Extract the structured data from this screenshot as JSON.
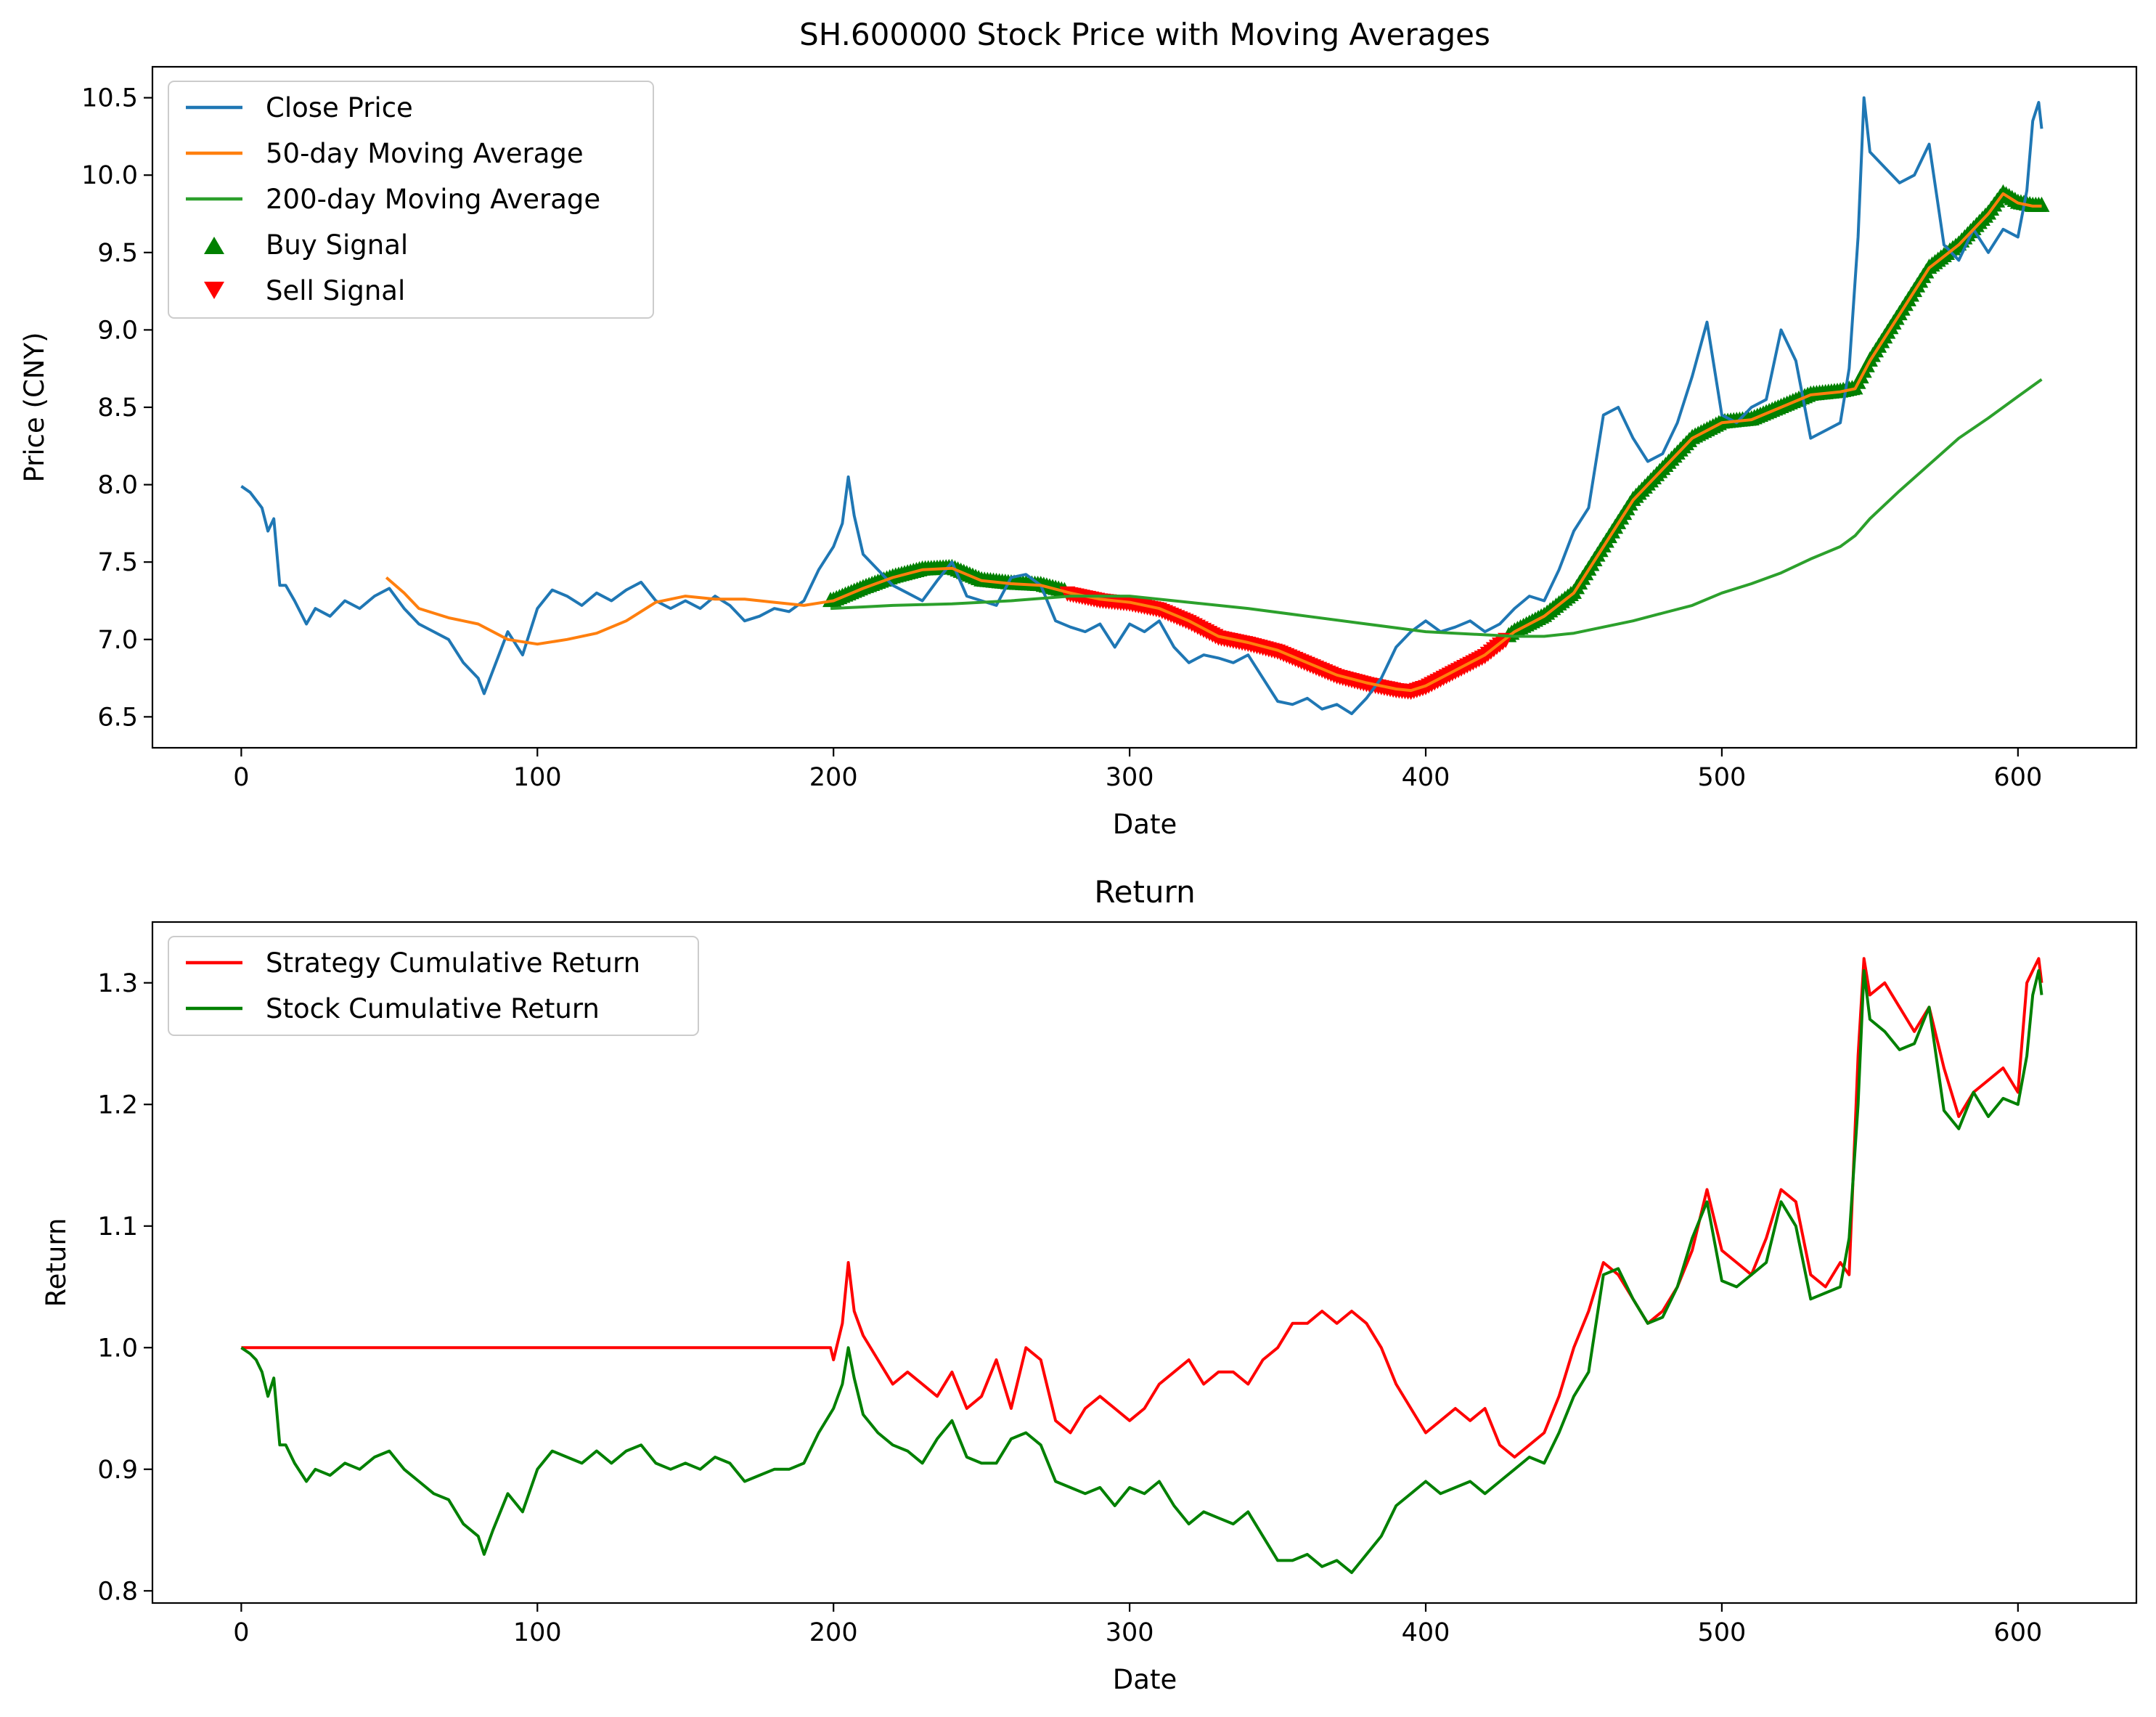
{
  "chart_data": [
    {
      "type": "line",
      "title": "SH.600000 Stock Price with Moving Averages",
      "xlabel": "Date",
      "ylabel": "Price (CNY)",
      "xlim": [
        -30,
        640
      ],
      "ylim": [
        6.3,
        10.7
      ],
      "xticks": [
        0,
        100,
        200,
        300,
        400,
        500,
        600
      ],
      "yticks": [
        6.5,
        7.0,
        7.5,
        8.0,
        8.5,
        9.0,
        9.5,
        10.0,
        10.5
      ],
      "ytick_labels": [
        "6.5",
        "7.0",
        "7.5",
        "8.0",
        "8.5",
        "9.0",
        "9.5",
        "10.0",
        "10.5"
      ],
      "grid": false,
      "legend_position": "top-left",
      "series": [
        {
          "name": "Close Price",
          "color": "#1f77b4",
          "x": [
            0,
            3,
            5,
            7,
            9,
            11,
            13,
            15,
            18,
            22,
            25,
            30,
            35,
            40,
            45,
            50,
            55,
            60,
            65,
            70,
            75,
            80,
            82,
            85,
            90,
            95,
            100,
            105,
            110,
            115,
            120,
            125,
            130,
            135,
            140,
            145,
            150,
            155,
            160,
            165,
            170,
            175,
            180,
            185,
            190,
            195,
            200,
            203,
            205,
            207,
            210,
            215,
            220,
            225,
            230,
            235,
            240,
            245,
            250,
            255,
            260,
            265,
            270,
            275,
            280,
            285,
            290,
            295,
            300,
            305,
            310,
            315,
            320,
            325,
            330,
            335,
            340,
            345,
            350,
            355,
            360,
            365,
            370,
            375,
            380,
            385,
            390,
            395,
            400,
            405,
            410,
            415,
            420,
            425,
            430,
            435,
            440,
            445,
            450,
            455,
            460,
            465,
            470,
            475,
            480,
            485,
            490,
            495,
            500,
            505,
            510,
            515,
            520,
            525,
            530,
            535,
            540,
            543,
            546,
            548,
            550,
            555,
            560,
            565,
            570,
            575,
            580,
            585,
            590,
            595,
            600,
            603,
            605,
            607,
            608
          ],
          "values": [
            7.99,
            7.95,
            7.9,
            7.85,
            7.7,
            7.78,
            7.35,
            7.35,
            7.25,
            7.1,
            7.2,
            7.15,
            7.25,
            7.2,
            7.28,
            7.33,
            7.2,
            7.1,
            7.05,
            7.0,
            6.85,
            6.75,
            6.65,
            6.8,
            7.05,
            6.9,
            7.2,
            7.32,
            7.28,
            7.22,
            7.3,
            7.25,
            7.32,
            7.37,
            7.25,
            7.2,
            7.25,
            7.2,
            7.28,
            7.22,
            7.12,
            7.15,
            7.2,
            7.18,
            7.25,
            7.45,
            7.6,
            7.75,
            8.05,
            7.8,
            7.55,
            7.45,
            7.35,
            7.3,
            7.25,
            7.38,
            7.5,
            7.28,
            7.25,
            7.22,
            7.4,
            7.42,
            7.35,
            7.12,
            7.08,
            7.05,
            7.1,
            6.95,
            7.1,
            7.05,
            7.12,
            6.95,
            6.85,
            6.9,
            6.88,
            6.85,
            6.9,
            6.75,
            6.6,
            6.58,
            6.62,
            6.55,
            6.58,
            6.52,
            6.62,
            6.75,
            6.95,
            7.05,
            7.12,
            7.05,
            7.08,
            7.12,
            7.05,
            7.1,
            7.2,
            7.28,
            7.25,
            7.45,
            7.7,
            7.85,
            8.45,
            8.5,
            8.3,
            8.15,
            8.2,
            8.4,
            8.7,
            9.05,
            8.45,
            8.4,
            8.5,
            8.55,
            9.0,
            8.8,
            8.3,
            8.35,
            8.4,
            8.75,
            9.6,
            10.5,
            10.15,
            10.05,
            9.95,
            10.0,
            10.2,
            9.55,
            9.45,
            9.65,
            9.5,
            9.65,
            9.6,
            9.9,
            10.35,
            10.47,
            10.3
          ]
        },
        {
          "name": "50-day Moving Average",
          "color": "#ff7f0e",
          "x": [
            49,
            55,
            60,
            70,
            80,
            90,
            100,
            110,
            120,
            130,
            140,
            150,
            160,
            170,
            180,
            190,
            200,
            210,
            220,
            230,
            240,
            250,
            260,
            270,
            280,
            290,
            300,
            310,
            320,
            330,
            340,
            350,
            360,
            370,
            380,
            390,
            395,
            400,
            410,
            420,
            430,
            440,
            450,
            460,
            470,
            480,
            490,
            500,
            510,
            520,
            530,
            540,
            545,
            550,
            560,
            570,
            580,
            590,
            595,
            600,
            605,
            608
          ],
          "values": [
            7.4,
            7.3,
            7.2,
            7.14,
            7.1,
            7.0,
            6.97,
            7.0,
            7.04,
            7.12,
            7.24,
            7.28,
            7.26,
            7.26,
            7.24,
            7.22,
            7.25,
            7.33,
            7.4,
            7.45,
            7.46,
            7.38,
            7.36,
            7.35,
            7.3,
            7.26,
            7.24,
            7.2,
            7.12,
            7.02,
            6.98,
            6.93,
            6.85,
            6.77,
            6.72,
            6.68,
            6.67,
            6.7,
            6.8,
            6.9,
            7.05,
            7.15,
            7.3,
            7.6,
            7.9,
            8.1,
            8.3,
            8.4,
            8.42,
            8.5,
            8.58,
            8.6,
            8.62,
            8.8,
            9.1,
            9.4,
            9.55,
            9.75,
            9.88,
            9.82,
            9.8,
            9.8
          ]
        },
        {
          "name": "200-day Moving Average",
          "color": "#2ca02c",
          "x": [
            199,
            210,
            220,
            240,
            260,
            280,
            300,
            320,
            340,
            360,
            380,
            400,
            420,
            430,
            440,
            450,
            460,
            470,
            480,
            490,
            500,
            510,
            520,
            530,
            540,
            545,
            550,
            560,
            570,
            580,
            590,
            600,
            608
          ],
          "values": [
            7.2,
            7.21,
            7.22,
            7.23,
            7.25,
            7.28,
            7.28,
            7.24,
            7.2,
            7.15,
            7.1,
            7.05,
            7.03,
            7.02,
            7.02,
            7.04,
            7.08,
            7.12,
            7.17,
            7.22,
            7.3,
            7.36,
            7.43,
            7.52,
            7.6,
            7.67,
            7.78,
            7.96,
            8.13,
            8.3,
            8.43,
            8.57,
            8.68
          ]
        }
      ],
      "buy_signal": {
        "name": "Buy Signal",
        "color": "#008000",
        "marker": "triangle-up",
        "ranges": [
          [
            199,
            278
          ],
          [
            428,
            608
          ]
        ]
      },
      "sell_signal": {
        "name": "Sell Signal",
        "color": "#ff0000",
        "marker": "triangle-down",
        "ranges": [
          [
            279,
            427
          ]
        ]
      }
    },
    {
      "type": "line",
      "title": "Return",
      "xlabel": "Date",
      "ylabel": "Return",
      "xlim": [
        -30,
        640
      ],
      "ylim": [
        0.79,
        1.35
      ],
      "xticks": [
        0,
        100,
        200,
        300,
        400,
        500,
        600
      ],
      "yticks": [
        0.8,
        0.9,
        1.0,
        1.1,
        1.2,
        1.3
      ],
      "ytick_labels": [
        "0.8",
        "0.9",
        "1.0",
        "1.1",
        "1.2",
        "1.3"
      ],
      "grid": false,
      "legend_position": "top-left",
      "series": [
        {
          "name": "Strategy Cumulative Return",
          "color": "#ff0000",
          "x": [
            0,
            199,
            200,
            203,
            205,
            207,
            210,
            215,
            220,
            225,
            230,
            235,
            240,
            245,
            250,
            255,
            260,
            265,
            270,
            275,
            280,
            285,
            290,
            295,
            300,
            305,
            310,
            315,
            320,
            325,
            330,
            335,
            340,
            345,
            350,
            355,
            360,
            365,
            370,
            375,
            380,
            385,
            390,
            395,
            400,
            405,
            410,
            415,
            420,
            425,
            430,
            435,
            440,
            445,
            450,
            455,
            460,
            465,
            470,
            475,
            480,
            485,
            490,
            495,
            500,
            505,
            510,
            515,
            520,
            525,
            530,
            535,
            540,
            543,
            546,
            548,
            550,
            555,
            560,
            565,
            570,
            575,
            580,
            585,
            590,
            595,
            600,
            603,
            605,
            607,
            608
          ],
          "values": [
            1.0,
            1.0,
            0.99,
            1.02,
            1.07,
            1.03,
            1.01,
            0.99,
            0.97,
            0.98,
            0.97,
            0.96,
            0.98,
            0.95,
            0.96,
            0.99,
            0.95,
            1.0,
            0.99,
            0.94,
            0.93,
            0.95,
            0.96,
            0.95,
            0.94,
            0.95,
            0.97,
            0.98,
            0.99,
            0.97,
            0.98,
            0.98,
            0.97,
            0.99,
            1.0,
            1.02,
            1.02,
            1.03,
            1.02,
            1.03,
            1.02,
            1.0,
            0.97,
            0.95,
            0.93,
            0.94,
            0.95,
            0.94,
            0.95,
            0.92,
            0.91,
            0.92,
            0.93,
            0.96,
            1.0,
            1.03,
            1.07,
            1.06,
            1.04,
            1.02,
            1.03,
            1.05,
            1.08,
            1.13,
            1.08,
            1.07,
            1.06,
            1.09,
            1.13,
            1.12,
            1.06,
            1.05,
            1.07,
            1.06,
            1.24,
            1.32,
            1.29,
            1.3,
            1.28,
            1.26,
            1.28,
            1.23,
            1.19,
            1.21,
            1.22,
            1.23,
            1.21,
            1.3,
            1.31,
            1.32,
            1.3
          ]
        },
        {
          "name": "Stock Cumulative Return",
          "color": "#008000",
          "x": [
            0,
            3,
            5,
            7,
            9,
            11,
            13,
            15,
            18,
            22,
            25,
            30,
            35,
            40,
            45,
            50,
            55,
            60,
            65,
            70,
            75,
            80,
            82,
            85,
            90,
            95,
            100,
            105,
            110,
            115,
            120,
            125,
            130,
            135,
            140,
            145,
            150,
            155,
            160,
            165,
            170,
            175,
            180,
            185,
            190,
            195,
            200,
            203,
            205,
            207,
            210,
            215,
            220,
            225,
            230,
            235,
            240,
            245,
            250,
            255,
            260,
            265,
            270,
            275,
            280,
            285,
            290,
            295,
            300,
            305,
            310,
            315,
            320,
            325,
            330,
            335,
            340,
            345,
            350,
            355,
            360,
            365,
            370,
            375,
            380,
            385,
            390,
            395,
            400,
            405,
            410,
            415,
            420,
            425,
            430,
            435,
            440,
            445,
            450,
            455,
            460,
            465,
            470,
            475,
            480,
            485,
            490,
            495,
            500,
            505,
            510,
            515,
            520,
            525,
            530,
            535,
            540,
            543,
            546,
            548,
            550,
            555,
            560,
            565,
            570,
            575,
            580,
            585,
            590,
            595,
            600,
            603,
            605,
            607,
            608
          ],
          "values": [
            1.0,
            0.995,
            0.99,
            0.98,
            0.96,
            0.975,
            0.92,
            0.92,
            0.905,
            0.89,
            0.9,
            0.895,
            0.905,
            0.9,
            0.91,
            0.915,
            0.9,
            0.89,
            0.88,
            0.875,
            0.855,
            0.845,
            0.83,
            0.85,
            0.88,
            0.865,
            0.9,
            0.915,
            0.91,
            0.905,
            0.915,
            0.905,
            0.915,
            0.92,
            0.905,
            0.9,
            0.905,
            0.9,
            0.91,
            0.905,
            0.89,
            0.895,
            0.9,
            0.9,
            0.905,
            0.93,
            0.95,
            0.97,
            1.0,
            0.975,
            0.945,
            0.93,
            0.92,
            0.915,
            0.905,
            0.925,
            0.94,
            0.91,
            0.905,
            0.905,
            0.925,
            0.93,
            0.92,
            0.89,
            0.885,
            0.88,
            0.885,
            0.87,
            0.885,
            0.88,
            0.89,
            0.87,
            0.855,
            0.865,
            0.86,
            0.855,
            0.865,
            0.845,
            0.825,
            0.825,
            0.83,
            0.82,
            0.825,
            0.815,
            0.83,
            0.845,
            0.87,
            0.88,
            0.89,
            0.88,
            0.885,
            0.89,
            0.88,
            0.89,
            0.9,
            0.91,
            0.905,
            0.93,
            0.96,
            0.98,
            1.06,
            1.065,
            1.04,
            1.02,
            1.025,
            1.05,
            1.09,
            1.12,
            1.055,
            1.05,
            1.06,
            1.07,
            1.12,
            1.1,
            1.04,
            1.045,
            1.05,
            1.09,
            1.2,
            1.31,
            1.27,
            1.26,
            1.245,
            1.25,
            1.28,
            1.195,
            1.18,
            1.21,
            1.19,
            1.205,
            1.2,
            1.24,
            1.29,
            1.31,
            1.29
          ]
        }
      ]
    }
  ]
}
